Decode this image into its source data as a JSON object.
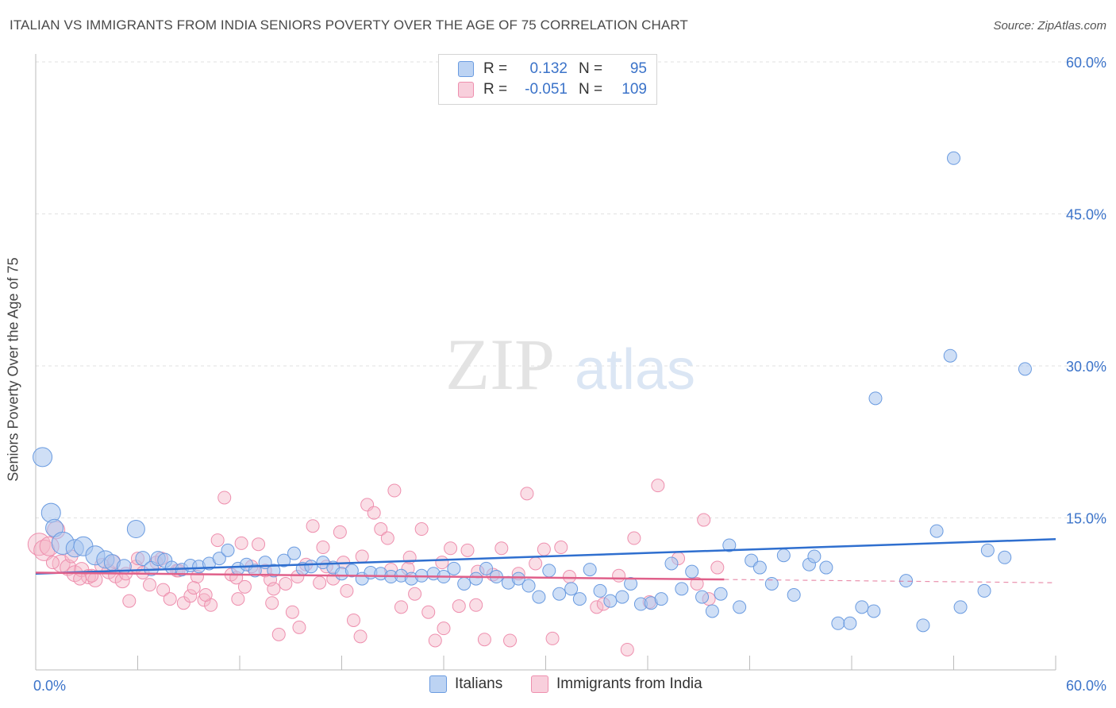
{
  "header": {
    "title": "ITALIAN VS IMMIGRANTS FROM INDIA SENIORS POVERTY OVER THE AGE OF 75 CORRELATION CHART",
    "source": "Source: ZipAtlas.com"
  },
  "legend": {
    "rows": [
      {
        "r_label": "R =",
        "r_value": "0.132",
        "n_label": "N =",
        "n_value": "95",
        "color": "#a7c4ee"
      },
      {
        "r_label": "R =",
        "r_value": "-0.051",
        "n_label": "N =",
        "n_value": "109",
        "color": "#f4b6c8"
      }
    ]
  },
  "bottom_legend": {
    "items": [
      {
        "label": "Italians",
        "color": "#a7c4ee"
      },
      {
        "label": "Immigrants from India",
        "color": "#f4b6c8"
      }
    ]
  },
  "watermark": {
    "zip": "ZIP",
    "atlas": "atlas"
  },
  "chart_data": {
    "type": "scatter",
    "title": "ITALIAN VS IMMIGRANTS FROM INDIA SENIORS POVERTY OVER THE AGE OF 75 CORRELATION CHART",
    "xlabel": "",
    "ylabel": "Seniors Poverty Over the Age of 75",
    "xlim": [
      0,
      60
    ],
    "ylim": [
      0,
      60
    ],
    "x_tick_labels": [
      "0.0%",
      "60.0%"
    ],
    "y_tick_labels": [
      "15.0%",
      "30.0%",
      "45.0%",
      "60.0%"
    ],
    "y_ticks": [
      15,
      30,
      45,
      60
    ],
    "grid": true,
    "legend_position": "top-center",
    "colors": {
      "italians": "#6a9be0",
      "india": "#ee8fae",
      "italians_line": "#2f6fcf",
      "india_line": "#e0608a"
    },
    "series": [
      {
        "name": "Italians",
        "trend": {
          "x0": 0,
          "y0": 9.5,
          "x1": 60,
          "y1": 12.9,
          "solid_to": 60
        },
        "points": [
          [
            0.4,
            21.0,
            12
          ],
          [
            0.9,
            15.5,
            12
          ],
          [
            1.1,
            14.0,
            11
          ],
          [
            1.6,
            12.5,
            14
          ],
          [
            2.3,
            12.0,
            11
          ],
          [
            2.8,
            12.2,
            12
          ],
          [
            3.5,
            11.3,
            12
          ],
          [
            4.1,
            10.9,
            11
          ],
          [
            4.5,
            10.6,
            10
          ],
          [
            5.2,
            10.2,
            9
          ],
          [
            5.9,
            13.9,
            11
          ],
          [
            6.3,
            11.0,
            9
          ],
          [
            6.8,
            10.0,
            9
          ],
          [
            7.2,
            11.0,
            9
          ],
          [
            7.6,
            10.8,
            9
          ],
          [
            8.0,
            10.1,
            8
          ],
          [
            8.6,
            9.9,
            8
          ],
          [
            9.1,
            10.3,
            8
          ],
          [
            9.6,
            10.2,
            8
          ],
          [
            10.2,
            10.5,
            8
          ],
          [
            10.8,
            11.0,
            8
          ],
          [
            11.3,
            11.8,
            8
          ],
          [
            11.9,
            10.0,
            8
          ],
          [
            12.4,
            10.4,
            8
          ],
          [
            12.9,
            9.8,
            8
          ],
          [
            13.5,
            10.6,
            8
          ],
          [
            14.0,
            9.8,
            8
          ],
          [
            14.6,
            10.8,
            8
          ],
          [
            15.2,
            11.5,
            8
          ],
          [
            15.7,
            10.0,
            8
          ],
          [
            16.2,
            10.2,
            8
          ],
          [
            16.9,
            10.6,
            8
          ],
          [
            17.5,
            10.1,
            8
          ],
          [
            18.0,
            9.5,
            8
          ],
          [
            18.6,
            9.8,
            8
          ],
          [
            19.2,
            9.0,
            8
          ],
          [
            19.7,
            9.6,
            8
          ],
          [
            20.3,
            9.5,
            8
          ],
          [
            20.9,
            9.2,
            8
          ],
          [
            21.5,
            9.3,
            8
          ],
          [
            22.1,
            9.0,
            8
          ],
          [
            22.7,
            9.3,
            8
          ],
          [
            23.4,
            9.5,
            8
          ],
          [
            24.0,
            9.2,
            8
          ],
          [
            24.6,
            10.0,
            8
          ],
          [
            25.2,
            8.5,
            8
          ],
          [
            25.9,
            9.0,
            8
          ],
          [
            26.5,
            10.0,
            8
          ],
          [
            27.1,
            9.2,
            8
          ],
          [
            27.8,
            8.6,
            8
          ],
          [
            28.4,
            9.0,
            8
          ],
          [
            29.0,
            8.3,
            8
          ],
          [
            29.6,
            7.2,
            8
          ],
          [
            30.2,
            9.8,
            8
          ],
          [
            30.8,
            7.5,
            8
          ],
          [
            31.5,
            8.0,
            8
          ],
          [
            32.0,
            7.0,
            8
          ],
          [
            32.6,
            9.9,
            8
          ],
          [
            33.2,
            7.8,
            8
          ],
          [
            33.8,
            6.8,
            8
          ],
          [
            34.5,
            7.2,
            8
          ],
          [
            35.0,
            8.5,
            8
          ],
          [
            35.6,
            6.5,
            8
          ],
          [
            36.2,
            6.6,
            8
          ],
          [
            36.8,
            7.0,
            8
          ],
          [
            37.4,
            10.5,
            8
          ],
          [
            38.0,
            8.0,
            8
          ],
          [
            38.6,
            9.7,
            8
          ],
          [
            39.2,
            7.2,
            8
          ],
          [
            39.8,
            5.8,
            8
          ],
          [
            40.3,
            7.5,
            8
          ],
          [
            40.8,
            12.3,
            8
          ],
          [
            41.4,
            6.2,
            8
          ],
          [
            42.1,
            10.8,
            8
          ],
          [
            42.6,
            10.1,
            8
          ],
          [
            43.3,
            8.5,
            8
          ],
          [
            44.0,
            11.3,
            8
          ],
          [
            44.6,
            7.4,
            8
          ],
          [
            45.5,
            10.4,
            8
          ],
          [
            45.8,
            11.2,
            8
          ],
          [
            46.5,
            10.1,
            8
          ],
          [
            47.2,
            4.6,
            8
          ],
          [
            47.9,
            4.6,
            8
          ],
          [
            48.6,
            6.2,
            8
          ],
          [
            49.3,
            5.8,
            8
          ],
          [
            49.4,
            26.8,
            8
          ],
          [
            51.2,
            8.8,
            8
          ],
          [
            52.2,
            4.4,
            8
          ],
          [
            53.0,
            13.7,
            8
          ],
          [
            53.8,
            31.0,
            8
          ],
          [
            54.0,
            50.5,
            8
          ],
          [
            54.4,
            6.2,
            8
          ],
          [
            55.8,
            7.8,
            8
          ],
          [
            56.0,
            11.8,
            8
          ],
          [
            57.0,
            11.1,
            8
          ],
          [
            58.2,
            29.7,
            8
          ]
        ]
      },
      {
        "name": "Immigrants from India",
        "trend": {
          "x0": 0,
          "y0": 9.6,
          "x1": 60,
          "y1": 8.6,
          "solid_to": 40.5
        },
        "points": [
          [
            0.2,
            12.4,
            14
          ],
          [
            0.5,
            11.8,
            13
          ],
          [
            0.8,
            12.2,
            12
          ],
          [
            1.2,
            13.8,
            11
          ],
          [
            1.5,
            10.5,
            11
          ],
          [
            1.9,
            10.1,
            10
          ],
          [
            2.3,
            9.5,
            10
          ],
          [
            2.7,
            9.9,
            9
          ],
          [
            3.1,
            9.2,
            9
          ],
          [
            3.5,
            8.9,
            9
          ],
          [
            3.9,
            10.3,
            9
          ],
          [
            4.3,
            9.7,
            9
          ],
          [
            4.7,
            9.3,
            9
          ],
          [
            5.1,
            8.8,
            9
          ],
          [
            5.5,
            6.8,
            8
          ],
          [
            5.9,
            10.2,
            8
          ],
          [
            6.3,
            9.6,
            8
          ],
          [
            6.7,
            8.4,
            8
          ],
          [
            7.1,
            10.6,
            8
          ],
          [
            7.5,
            7.9,
            8
          ],
          [
            7.9,
            7.0,
            8
          ],
          [
            8.3,
            9.8,
            8
          ],
          [
            8.7,
            6.6,
            8
          ],
          [
            9.1,
            7.3,
            8
          ],
          [
            9.5,
            9.2,
            8
          ],
          [
            9.9,
            6.9,
            8
          ],
          [
            10.3,
            6.4,
            8
          ],
          [
            10.7,
            12.8,
            8
          ],
          [
            11.1,
            17.0,
            8
          ],
          [
            11.5,
            9.4,
            8
          ],
          [
            11.9,
            7.0,
            8
          ],
          [
            12.3,
            8.2,
            8
          ],
          [
            12.7,
            10.2,
            8
          ],
          [
            13.1,
            12.4,
            8
          ],
          [
            13.5,
            9.8,
            8
          ],
          [
            13.9,
            6.6,
            8
          ],
          [
            14.3,
            3.5,
            8
          ],
          [
            14.7,
            8.5,
            8
          ],
          [
            15.1,
            5.7,
            8
          ],
          [
            15.5,
            4.2,
            8
          ],
          [
            15.9,
            10.4,
            8
          ],
          [
            16.3,
            14.2,
            8
          ],
          [
            16.7,
            8.6,
            8
          ],
          [
            17.1,
            10.2,
            8
          ],
          [
            17.5,
            9.0,
            8
          ],
          [
            17.9,
            13.6,
            8
          ],
          [
            18.3,
            7.8,
            8
          ],
          [
            18.7,
            4.9,
            8
          ],
          [
            19.1,
            3.3,
            8
          ],
          [
            19.5,
            16.3,
            8
          ],
          [
            19.9,
            15.5,
            8
          ],
          [
            20.3,
            13.9,
            8
          ],
          [
            20.7,
            13.0,
            8
          ],
          [
            21.1,
            17.7,
            8
          ],
          [
            21.5,
            6.2,
            8
          ],
          [
            21.9,
            10.0,
            8
          ],
          [
            22.3,
            7.5,
            8
          ],
          [
            22.7,
            13.9,
            8
          ],
          [
            23.1,
            5.7,
            8
          ],
          [
            23.5,
            2.9,
            8
          ],
          [
            24.0,
            4.1,
            8
          ],
          [
            24.4,
            12.0,
            8
          ],
          [
            24.9,
            6.3,
            8
          ],
          [
            25.4,
            11.8,
            8
          ],
          [
            25.9,
            6.4,
            8
          ],
          [
            26.4,
            3.0,
            8
          ],
          [
            26.9,
            9.4,
            8
          ],
          [
            27.4,
            12.0,
            8
          ],
          [
            27.9,
            2.9,
            8
          ],
          [
            28.4,
            9.5,
            8
          ],
          [
            28.9,
            17.4,
            8
          ],
          [
            29.4,
            10.5,
            8
          ],
          [
            29.9,
            11.9,
            8
          ],
          [
            30.4,
            3.1,
            8
          ],
          [
            30.9,
            12.1,
            8
          ],
          [
            31.4,
            9.2,
            8
          ],
          [
            33.0,
            6.2,
            8
          ],
          [
            33.4,
            6.5,
            8
          ],
          [
            34.3,
            9.3,
            8
          ],
          [
            34.8,
            2.0,
            8
          ],
          [
            35.2,
            13.0,
            8
          ],
          [
            36.1,
            6.7,
            8
          ],
          [
            36.6,
            18.2,
            8
          ],
          [
            37.8,
            11.0,
            8
          ],
          [
            38.9,
            8.5,
            8
          ],
          [
            39.3,
            14.8,
            8
          ],
          [
            39.6,
            7.0,
            8
          ],
          [
            40.1,
            10.1,
            8
          ],
          [
            12.1,
            12.5,
            8
          ],
          [
            16.9,
            12.1,
            8
          ],
          [
            19.2,
            11.2,
            8
          ],
          [
            20.9,
            9.9,
            8
          ],
          [
            22.0,
            11.1,
            8
          ],
          [
            23.9,
            10.6,
            8
          ],
          [
            26.0,
            9.7,
            8
          ],
          [
            13.8,
            8.9,
            8
          ],
          [
            10.0,
            7.4,
            8
          ],
          [
            8.4,
            9.8,
            8
          ],
          [
            6.0,
            11.0,
            8
          ],
          [
            4.6,
            10.7,
            8
          ],
          [
            3.3,
            9.3,
            8
          ],
          [
            2.1,
            11.2,
            8
          ],
          [
            1.0,
            10.6,
            8
          ],
          [
            18.1,
            10.6,
            8
          ],
          [
            15.4,
            9.2,
            8
          ],
          [
            9.3,
            8.1,
            8
          ],
          [
            11.8,
            9.1,
            8
          ],
          [
            14.0,
            8.0,
            8
          ],
          [
            7.4,
            11.0,
            8
          ],
          [
            5.3,
            9.5,
            8
          ],
          [
            2.6,
            9.0,
            8
          ]
        ]
      }
    ]
  }
}
